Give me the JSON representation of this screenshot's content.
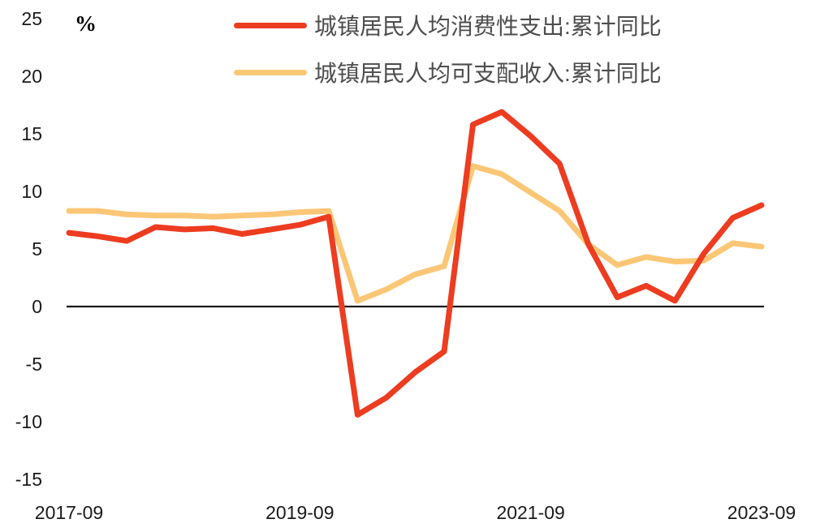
{
  "chart_data": {
    "type": "line",
    "title": "",
    "unit": "%",
    "xlabel": "",
    "ylabel": "%",
    "ylim": [
      -15,
      25
    ],
    "ytick_step": 5,
    "yticks": [
      25,
      20,
      15,
      10,
      5,
      0,
      -5,
      -10,
      -15
    ],
    "grid": false,
    "legend_position": "top-center",
    "x": [
      "2017-09",
      "2017-12",
      "2018-03",
      "2018-06",
      "2018-09",
      "2018-12",
      "2019-03",
      "2019-06",
      "2019-09",
      "2019-12",
      "2020-03",
      "2020-06",
      "2020-09",
      "2020-12",
      "2021-03",
      "2021-06",
      "2021-09",
      "2021-12",
      "2022-03",
      "2022-06",
      "2022-09",
      "2022-12",
      "2023-03",
      "2023-06",
      "2023-09"
    ],
    "x_axis_shown_labels": [
      "2017-09",
      "2019-09",
      "2021-09",
      "2023-09"
    ],
    "x_axis_shown_indices": [
      0,
      8,
      16,
      24
    ],
    "series": [
      {
        "name": "城镇居民人均消费性支出:累计同比",
        "color": "#ED3C20",
        "values": [
          6.4,
          6.1,
          5.7,
          6.9,
          6.7,
          6.8,
          6.3,
          6.7,
          7.1,
          7.8,
          -9.4,
          -7.9,
          -5.7,
          -3.9,
          15.8,
          16.9,
          14.8,
          12.4,
          5.4,
          0.8,
          1.8,
          0.5,
          4.6,
          7.7,
          8.8
        ]
      },
      {
        "name": "城镇居民人均可支配收入:累计同比",
        "color": "#FBC776",
        "values": [
          8.3,
          8.3,
          8.0,
          7.9,
          7.9,
          7.8,
          7.9,
          8.0,
          8.2,
          8.3,
          0.5,
          1.5,
          2.8,
          3.5,
          12.2,
          11.5,
          9.9,
          8.3,
          5.4,
          3.6,
          4.3,
          3.9,
          4.0,
          5.5,
          5.2
        ]
      }
    ],
    "axis_color": "#1a1a1a",
    "tick_label_color": "#1a1a1a",
    "legend_text_color": "#4d4d4d"
  }
}
